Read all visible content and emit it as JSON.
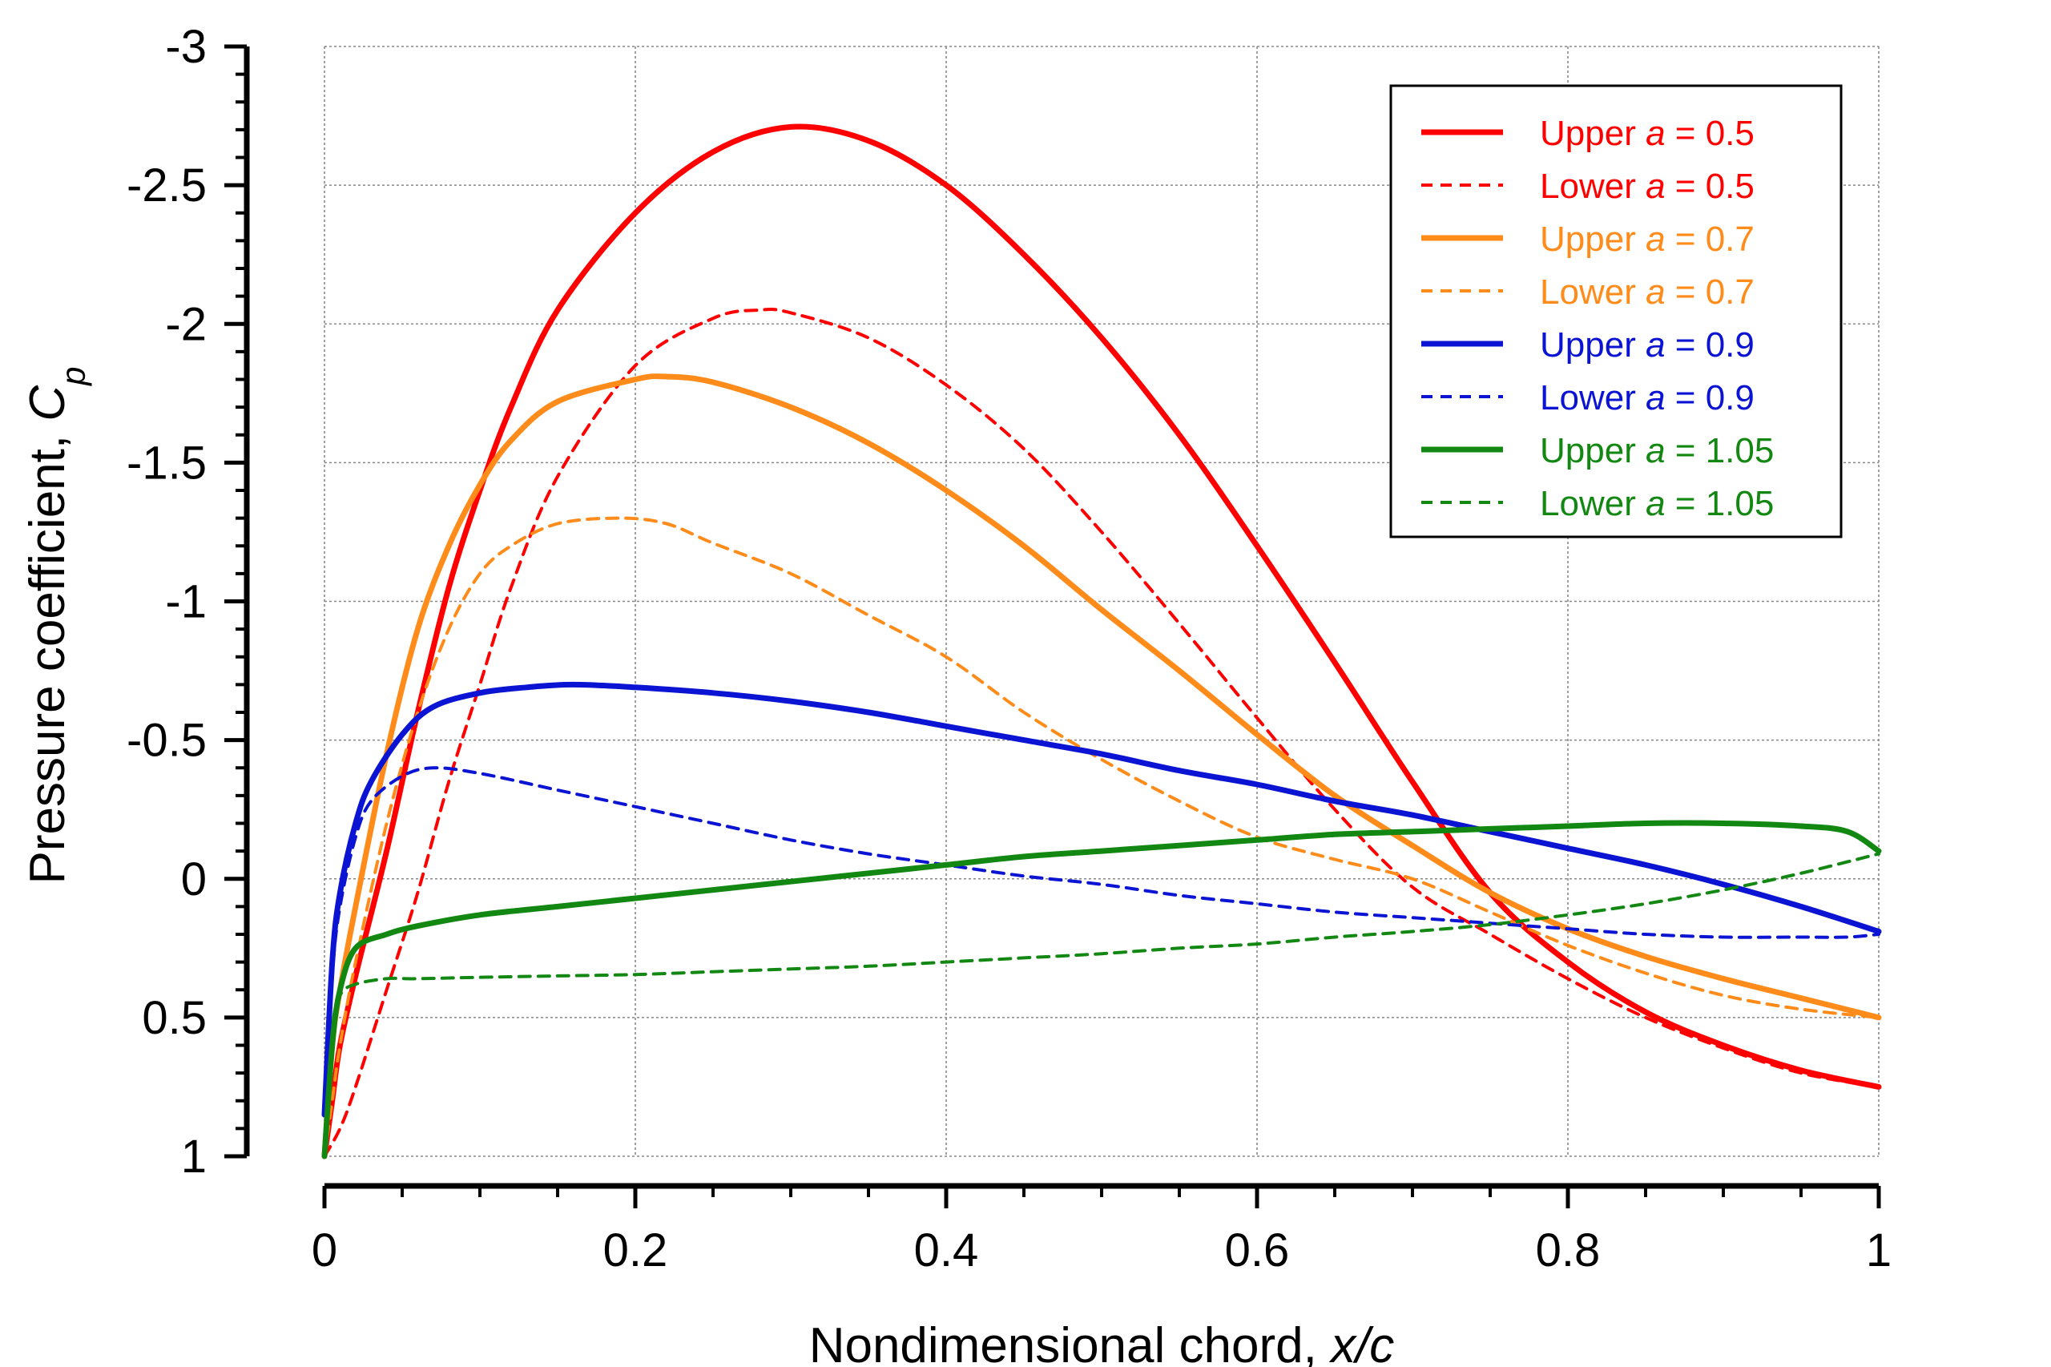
{
  "chart_data": {
    "type": "line",
    "title": "",
    "xlabel": "Nondimensional chord, x/c",
    "xlabel_parts": [
      "Nondimensional chord, ",
      "x/c"
    ],
    "ylabel": "Pressure coefficient, Cp",
    "ylabel_parts": [
      "Pressure coefficient, ",
      "C",
      "p"
    ],
    "xlim": [
      0,
      1
    ],
    "ylim": [
      1,
      -3
    ],
    "y_axis_inverted": true,
    "grid": true,
    "legend_position": "top-right",
    "x_ticks": [
      "0",
      "0.2",
      "0.4",
      "0.6",
      "0.8",
      "1"
    ],
    "y_ticks": [
      "-3",
      "-2.5",
      "-2",
      "-1.5",
      "-1",
      "-0.5",
      "0",
      "0.5",
      "1"
    ],
    "series": [
      {
        "name": "Upper a = 0.5",
        "label_parts": [
          "Upper ",
          "a",
          " = 0.5"
        ],
        "color": "#ff0000",
        "style": "solid",
        "x": [
          0,
          0.005,
          0.01,
          0.02,
          0.04,
          0.06,
          0.08,
          0.1,
          0.12,
          0.15,
          0.2,
          0.25,
          0.3,
          0.35,
          0.4,
          0.45,
          0.5,
          0.55,
          0.6,
          0.65,
          0.7,
          0.75,
          0.8,
          0.85,
          0.9,
          0.95,
          1.0
        ],
        "y": [
          1.0,
          0.8,
          0.6,
          0.35,
          -0.1,
          -0.6,
          -1.05,
          -1.4,
          -1.7,
          -2.05,
          -2.4,
          -2.62,
          -2.71,
          -2.66,
          -2.5,
          -2.25,
          -1.95,
          -1.6,
          -1.2,
          -0.78,
          -0.35,
          0.05,
          0.3,
          0.48,
          0.6,
          0.69,
          0.75
        ]
      },
      {
        "name": "Lower a = 0.5",
        "label_parts": [
          "Lower ",
          "a",
          " = 0.5"
        ],
        "color": "#ff0000",
        "style": "dashed",
        "x": [
          0,
          0.01,
          0.02,
          0.04,
          0.06,
          0.08,
          0.1,
          0.12,
          0.15,
          0.2,
          0.25,
          0.28,
          0.3,
          0.35,
          0.4,
          0.45,
          0.5,
          0.55,
          0.6,
          0.65,
          0.7,
          0.75,
          0.8,
          0.85,
          0.9,
          0.95,
          1.0
        ],
        "y": [
          1.0,
          0.9,
          0.75,
          0.4,
          0.05,
          -0.35,
          -0.7,
          -1.05,
          -1.45,
          -1.85,
          -2.02,
          -2.05,
          -2.04,
          -1.95,
          -1.78,
          -1.55,
          -1.25,
          -0.92,
          -0.58,
          -0.25,
          0.03,
          0.2,
          0.36,
          0.5,
          0.61,
          0.7,
          0.75
        ]
      },
      {
        "name": "Upper a = 0.7",
        "label_parts": [
          "Upper ",
          "a",
          " = 0.7"
        ],
        "color": "#ff8c1a",
        "style": "solid",
        "x": [
          0,
          0.005,
          0.01,
          0.02,
          0.04,
          0.06,
          0.08,
          0.1,
          0.12,
          0.15,
          0.2,
          0.22,
          0.25,
          0.3,
          0.35,
          0.4,
          0.45,
          0.5,
          0.55,
          0.6,
          0.65,
          0.7,
          0.75,
          0.8,
          0.85,
          0.9,
          0.95,
          1.0
        ],
        "y": [
          1.0,
          0.6,
          0.4,
          0.1,
          -0.45,
          -0.9,
          -1.2,
          -1.42,
          -1.58,
          -1.72,
          -1.8,
          -1.81,
          -1.79,
          -1.7,
          -1.57,
          -1.4,
          -1.2,
          -0.97,
          -0.75,
          -0.52,
          -0.3,
          -0.12,
          0.05,
          0.18,
          0.28,
          0.36,
          0.43,
          0.5
        ]
      },
      {
        "name": "Lower a = 0.7",
        "label_parts": [
          "Lower ",
          "a",
          " = 0.7"
        ],
        "color": "#ff8c1a",
        "style": "dashed",
        "x": [
          0,
          0.005,
          0.01,
          0.02,
          0.04,
          0.06,
          0.08,
          0.1,
          0.12,
          0.15,
          0.19,
          0.22,
          0.25,
          0.3,
          0.35,
          0.4,
          0.45,
          0.5,
          0.55,
          0.6,
          0.65,
          0.7,
          0.75,
          0.8,
          0.85,
          0.9,
          0.95,
          1.0
        ],
        "y": [
          1.0,
          0.8,
          0.6,
          0.3,
          -0.2,
          -0.6,
          -0.9,
          -1.1,
          -1.2,
          -1.28,
          -1.3,
          -1.28,
          -1.21,
          -1.1,
          -0.95,
          -0.8,
          -0.6,
          -0.43,
          -0.28,
          -0.15,
          -0.07,
          0.0,
          0.12,
          0.24,
          0.34,
          0.42,
          0.47,
          0.5
        ]
      },
      {
        "name": "Upper a = 0.9",
        "label_parts": [
          "Upper ",
          "a",
          " = 0.9"
        ],
        "color": "#0a14d2",
        "style": "solid",
        "x": [
          0,
          0.005,
          0.01,
          0.02,
          0.03,
          0.05,
          0.07,
          0.1,
          0.13,
          0.16,
          0.2,
          0.25,
          0.3,
          0.35,
          0.4,
          0.45,
          0.5,
          0.55,
          0.6,
          0.65,
          0.7,
          0.75,
          0.8,
          0.85,
          0.9,
          0.95,
          1.0
        ],
        "y": [
          0.85,
          0.3,
          0.05,
          -0.2,
          -0.35,
          -0.52,
          -0.62,
          -0.67,
          -0.69,
          -0.7,
          -0.69,
          -0.67,
          -0.64,
          -0.6,
          -0.55,
          -0.5,
          -0.45,
          -0.39,
          -0.34,
          -0.28,
          -0.23,
          -0.17,
          -0.11,
          -0.05,
          0.02,
          0.1,
          0.19
        ]
      },
      {
        "name": "Lower a = 0.9",
        "label_parts": [
          "Lower ",
          "a",
          " = 0.9"
        ],
        "color": "#0a14d2",
        "style": "dashed",
        "x": [
          0,
          0.005,
          0.01,
          0.02,
          0.03,
          0.05,
          0.07,
          0.1,
          0.15,
          0.2,
          0.25,
          0.3,
          0.35,
          0.4,
          0.45,
          0.5,
          0.55,
          0.6,
          0.65,
          0.7,
          0.75,
          0.8,
          0.85,
          0.9,
          0.95,
          0.98,
          1.0
        ],
        "y": [
          0.85,
          0.35,
          0.1,
          -0.15,
          -0.28,
          -0.37,
          -0.4,
          -0.38,
          -0.32,
          -0.26,
          -0.2,
          -0.14,
          -0.09,
          -0.05,
          -0.01,
          0.02,
          0.06,
          0.09,
          0.12,
          0.14,
          0.16,
          0.18,
          0.2,
          0.21,
          0.21,
          0.21,
          0.2
        ]
      },
      {
        "name": "Upper a = 1.05",
        "label_parts": [
          "Upper ",
          "a",
          " = 1.05"
        ],
        "color": "#128812",
        "style": "solid",
        "x": [
          0,
          0.005,
          0.01,
          0.02,
          0.04,
          0.06,
          0.1,
          0.15,
          0.2,
          0.25,
          0.3,
          0.35,
          0.4,
          0.45,
          0.5,
          0.55,
          0.6,
          0.65,
          0.7,
          0.75,
          0.8,
          0.85,
          0.9,
          0.95,
          0.98,
          1.0
        ],
        "y": [
          1.0,
          0.6,
          0.4,
          0.25,
          0.2,
          0.17,
          0.13,
          0.1,
          0.07,
          0.04,
          0.01,
          -0.02,
          -0.05,
          -0.08,
          -0.1,
          -0.12,
          -0.14,
          -0.16,
          -0.17,
          -0.18,
          -0.19,
          -0.2,
          -0.2,
          -0.19,
          -0.17,
          -0.1
        ]
      },
      {
        "name": "Lower a = 1.05",
        "label_parts": [
          "Lower ",
          "a",
          " = 1.05"
        ],
        "color": "#128812",
        "style": "dashed",
        "x": [
          0,
          0.005,
          0.01,
          0.02,
          0.04,
          0.06,
          0.1,
          0.15,
          0.2,
          0.25,
          0.3,
          0.35,
          0.4,
          0.45,
          0.5,
          0.55,
          0.6,
          0.65,
          0.7,
          0.75,
          0.8,
          0.85,
          0.9,
          0.95,
          1.0
        ],
        "y": [
          1.0,
          0.55,
          0.42,
          0.38,
          0.36,
          0.36,
          0.355,
          0.35,
          0.345,
          0.335,
          0.325,
          0.315,
          0.3,
          0.285,
          0.27,
          0.25,
          0.235,
          0.21,
          0.19,
          0.165,
          0.13,
          0.09,
          0.04,
          -0.02,
          -0.09
        ]
      }
    ]
  }
}
